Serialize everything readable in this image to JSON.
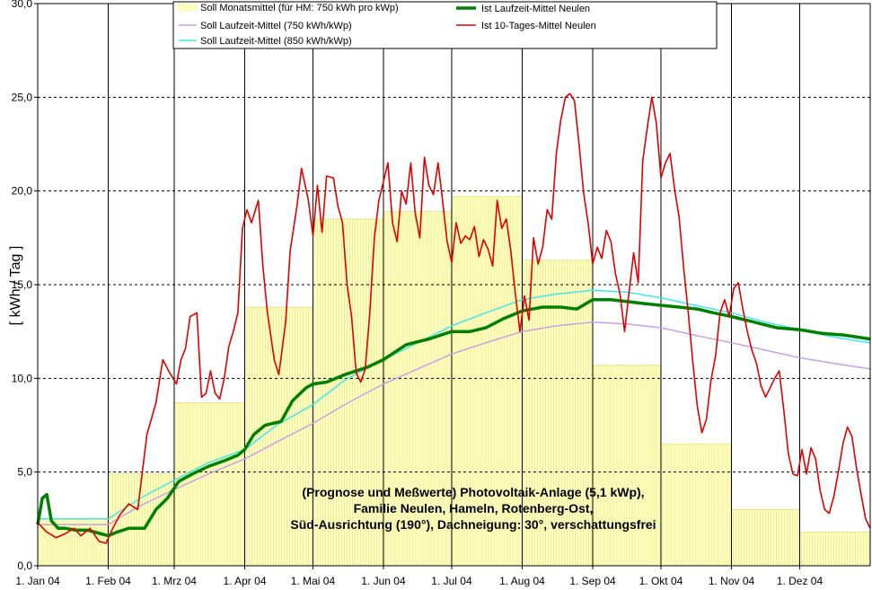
{
  "chart_data": {
    "type": "line",
    "ylabel": "[ kWh / Tag ]",
    "ylim": [
      0,
      30
    ],
    "y_ticks": [
      "0,0",
      "5,0",
      "10,0",
      "15,0",
      "20,0",
      "25,0",
      "30,0"
    ],
    "x_ticks": [
      "1. Jan 04",
      "1. Feb 04",
      "1. Mrz 04",
      "1. Apr 04",
      "1. Mai 04",
      "1. Jun 04",
      "1. Jul 04",
      "1. Aug 04",
      "1. Sep 04",
      "1. Okt 04",
      "1. Nov 04",
      "1. Dez 04"
    ],
    "x_range_days": [
      0,
      366
    ],
    "grid": "dashed-horizontal, solid-vertical at month starts",
    "legend_position": "top-center",
    "annotation_lines": [
      "(Prognose und Meßwerte)  Photovoltaik-Anlage (5,1 kWp),",
      "Familie Neulen, Hameln, Rotenberg-Ost,",
      "Süd-Ausrichtung (190°), Dachneigung: 30°, verschattungsfrei"
    ],
    "monthly_bars": {
      "name": "Soll Monatsmittel (für HM: 750 kWh pro kWp)",
      "color": "#ffffc0",
      "month_start_days": [
        0,
        31,
        60,
        91,
        121,
        152,
        182,
        213,
        244,
        274,
        305,
        335,
        366
      ],
      "values": [
        2.5,
        4.9,
        8.7,
        13.8,
        18.5,
        18.9,
        19.7,
        16.3,
        10.7,
        6.5,
        3.0,
        1.8
      ]
    },
    "series": [
      {
        "name": "Soll Laufzeit-Mittel (750 kWh/kWp)",
        "color": "#c8a0e8",
        "width": 1.5,
        "points": [
          [
            0,
            2.2
          ],
          [
            31,
            2.2
          ],
          [
            45,
            3.2
          ],
          [
            59,
            4.0
          ],
          [
            75,
            4.9
          ],
          [
            91,
            5.7
          ],
          [
            105,
            6.6
          ],
          [
            121,
            7.6
          ],
          [
            135,
            8.6
          ],
          [
            152,
            9.7
          ],
          [
            167,
            10.5
          ],
          [
            182,
            11.3
          ],
          [
            197,
            11.9
          ],
          [
            213,
            12.5
          ],
          [
            228,
            12.8
          ],
          [
            244,
            13.0
          ],
          [
            259,
            12.9
          ],
          [
            274,
            12.7
          ],
          [
            289,
            12.3
          ],
          [
            305,
            11.9
          ],
          [
            320,
            11.5
          ],
          [
            335,
            11.1
          ],
          [
            350,
            10.8
          ],
          [
            366,
            10.5
          ]
        ]
      },
      {
        "name": "Soll Laufzeit-Mittel (850 kWh/kWp)",
        "color": "#40e8e8",
        "width": 1.5,
        "points": [
          [
            0,
            2.5
          ],
          [
            31,
            2.5
          ],
          [
            45,
            3.6
          ],
          [
            59,
            4.5
          ],
          [
            75,
            5.5
          ],
          [
            91,
            6.2
          ],
          [
            105,
            7.5
          ],
          [
            121,
            8.6
          ],
          [
            135,
            9.9
          ],
          [
            152,
            11.0
          ],
          [
            167,
            11.9
          ],
          [
            182,
            12.8
          ],
          [
            197,
            13.5
          ],
          [
            213,
            14.2
          ],
          [
            228,
            14.5
          ],
          [
            244,
            14.7
          ],
          [
            259,
            14.6
          ],
          [
            274,
            14.3
          ],
          [
            289,
            13.9
          ],
          [
            305,
            13.5
          ],
          [
            320,
            13.0
          ],
          [
            335,
            12.6
          ],
          [
            350,
            12.2
          ],
          [
            366,
            11.9
          ]
        ]
      },
      {
        "name": "Ist Laufzeit-Mittel Neulen",
        "color": "#008000",
        "width": 3.5,
        "points": [
          [
            0,
            2.2
          ],
          [
            2,
            3.6
          ],
          [
            4,
            3.8
          ],
          [
            6,
            2.4
          ],
          [
            9,
            2.0
          ],
          [
            12,
            2.0
          ],
          [
            17,
            1.9
          ],
          [
            22,
            1.9
          ],
          [
            28,
            1.7
          ],
          [
            31,
            1.6
          ],
          [
            35,
            1.8
          ],
          [
            40,
            2.0
          ],
          [
            47,
            2.0
          ],
          [
            52,
            3.0
          ],
          [
            57,
            3.6
          ],
          [
            62,
            4.5
          ],
          [
            68,
            4.9
          ],
          [
            75,
            5.3
          ],
          [
            82,
            5.6
          ],
          [
            88,
            5.9
          ],
          [
            91,
            6.2
          ],
          [
            95,
            7.0
          ],
          [
            100,
            7.5
          ],
          [
            107,
            7.7
          ],
          [
            112,
            8.8
          ],
          [
            118,
            9.5
          ],
          [
            121,
            9.7
          ],
          [
            127,
            9.8
          ],
          [
            135,
            10.2
          ],
          [
            145,
            10.6
          ],
          [
            152,
            11.0
          ],
          [
            162,
            11.8
          ],
          [
            172,
            12.1
          ],
          [
            182,
            12.5
          ],
          [
            190,
            12.5
          ],
          [
            197,
            12.7
          ],
          [
            205,
            13.2
          ],
          [
            213,
            13.6
          ],
          [
            222,
            13.8
          ],
          [
            230,
            13.8
          ],
          [
            237,
            13.7
          ],
          [
            244,
            14.2
          ],
          [
            252,
            14.2
          ],
          [
            259,
            14.1
          ],
          [
            266,
            14.0
          ],
          [
            274,
            13.9
          ],
          [
            282,
            13.8
          ],
          [
            290,
            13.7
          ],
          [
            297,
            13.5
          ],
          [
            305,
            13.3
          ],
          [
            315,
            13.0
          ],
          [
            325,
            12.7
          ],
          [
            335,
            12.6
          ],
          [
            345,
            12.4
          ],
          [
            355,
            12.3
          ],
          [
            366,
            12.1
          ]
        ]
      },
      {
        "name": "Ist 10-Tages-Mittel Neulen",
        "color": "#e00000",
        "width": 1.6,
        "points": [
          [
            0,
            2.3
          ],
          [
            4,
            1.8
          ],
          [
            8,
            1.5
          ],
          [
            12,
            1.7
          ],
          [
            16,
            2.0
          ],
          [
            19,
            1.6
          ],
          [
            23,
            2.0
          ],
          [
            27,
            1.3
          ],
          [
            30,
            1.2
          ],
          [
            33,
            2.0
          ],
          [
            36,
            2.7
          ],
          [
            40,
            3.3
          ],
          [
            44,
            3.0
          ],
          [
            46,
            5.0
          ],
          [
            48,
            7.0
          ],
          [
            52,
            8.7
          ],
          [
            55,
            11.0
          ],
          [
            58,
            10.3
          ],
          [
            61,
            9.7
          ],
          [
            63,
            11.0
          ],
          [
            65,
            11.6
          ],
          [
            67,
            13.3
          ],
          [
            70,
            13.5
          ],
          [
            72,
            9.0
          ],
          [
            74,
            9.2
          ],
          [
            76,
            10.4
          ],
          [
            78,
            9.2
          ],
          [
            80,
            8.9
          ],
          [
            82,
            10.0
          ],
          [
            84,
            11.7
          ],
          [
            86,
            12.5
          ],
          [
            88,
            13.5
          ],
          [
            90,
            18.0
          ],
          [
            92,
            19.0
          ],
          [
            94,
            18.3
          ],
          [
            96,
            19.1
          ],
          [
            97,
            19.5
          ],
          [
            99,
            16.0
          ],
          [
            101,
            13.5
          ],
          [
            104,
            11.0
          ],
          [
            106,
            10.2
          ],
          [
            109,
            13.0
          ],
          [
            111,
            16.8
          ],
          [
            114,
            19.2
          ],
          [
            116,
            21.2
          ],
          [
            119,
            19.5
          ],
          [
            121,
            17.6
          ],
          [
            123,
            20.3
          ],
          [
            125,
            17.8
          ],
          [
            127,
            20.8
          ],
          [
            130,
            20.7
          ],
          [
            132,
            19.2
          ],
          [
            134,
            18.3
          ],
          [
            136,
            15.0
          ],
          [
            138,
            13.3
          ],
          [
            140,
            10.3
          ],
          [
            142,
            9.8
          ],
          [
            144,
            10.5
          ],
          [
            146,
            13.5
          ],
          [
            148,
            17.5
          ],
          [
            150,
            19.5
          ],
          [
            152,
            20.5
          ],
          [
            154,
            21.5
          ],
          [
            156,
            18.3
          ],
          [
            158,
            17.3
          ],
          [
            160,
            20.0
          ],
          [
            162,
            19.3
          ],
          [
            164,
            21.5
          ],
          [
            166,
            18.8
          ],
          [
            168,
            17.5
          ],
          [
            170,
            21.8
          ],
          [
            172,
            20.3
          ],
          [
            174,
            19.8
          ],
          [
            176,
            21.5
          ],
          [
            178,
            19.5
          ],
          [
            180,
            17.3
          ],
          [
            182,
            16.2
          ],
          [
            184,
            18.3
          ],
          [
            186,
            17.2
          ],
          [
            188,
            17.6
          ],
          [
            190,
            17.4
          ],
          [
            192,
            18.1
          ],
          [
            194,
            16.5
          ],
          [
            196,
            17.4
          ],
          [
            198,
            16.9
          ],
          [
            200,
            16.0
          ],
          [
            202,
            19.5
          ],
          [
            204,
            18.0
          ],
          [
            206,
            18.5
          ],
          [
            208,
            16.8
          ],
          [
            210,
            14.5
          ],
          [
            212,
            12.5
          ],
          [
            214,
            14.4
          ],
          [
            216,
            13.1
          ],
          [
            218,
            17.5
          ],
          [
            220,
            16.1
          ],
          [
            222,
            17.0
          ],
          [
            224,
            19.0
          ],
          [
            226,
            18.5
          ],
          [
            228,
            22.0
          ],
          [
            230,
            23.8
          ],
          [
            232,
            25.0
          ],
          [
            234,
            25.2
          ],
          [
            236,
            24.8
          ],
          [
            238,
            22.5
          ],
          [
            240,
            19.9
          ],
          [
            242,
            18.3
          ],
          [
            244,
            16.1
          ],
          [
            246,
            17.0
          ],
          [
            248,
            16.4
          ],
          [
            250,
            17.9
          ],
          [
            252,
            17.3
          ],
          [
            254,
            15.6
          ],
          [
            256,
            14.5
          ],
          [
            258,
            12.5
          ],
          [
            260,
            14.6
          ],
          [
            262,
            16.7
          ],
          [
            264,
            15.1
          ],
          [
            266,
            21.6
          ],
          [
            268,
            23.4
          ],
          [
            270,
            25.0
          ],
          [
            272,
            23.6
          ],
          [
            274,
            20.7
          ],
          [
            276,
            21.5
          ],
          [
            278,
            22.0
          ],
          [
            280,
            20.1
          ],
          [
            282,
            18.6
          ],
          [
            284,
            15.9
          ],
          [
            286,
            13.5
          ],
          [
            288,
            10.9
          ],
          [
            290,
            8.5
          ],
          [
            292,
            7.1
          ],
          [
            294,
            7.8
          ],
          [
            296,
            9.9
          ],
          [
            298,
            11.2
          ],
          [
            300,
            13.5
          ],
          [
            302,
            14.2
          ],
          [
            304,
            13.3
          ],
          [
            306,
            14.8
          ],
          [
            308,
            15.1
          ],
          [
            310,
            13.7
          ],
          [
            312,
            12.5
          ],
          [
            314,
            11.5
          ],
          [
            316,
            10.8
          ],
          [
            318,
            9.6
          ],
          [
            320,
            9.0
          ],
          [
            322,
            9.5
          ],
          [
            324,
            10.0
          ],
          [
            326,
            10.4
          ],
          [
            328,
            8.3
          ],
          [
            330,
            6.0
          ],
          [
            332,
            4.9
          ],
          [
            334,
            4.8
          ],
          [
            336,
            6.2
          ],
          [
            338,
            4.9
          ],
          [
            340,
            6.3
          ],
          [
            342,
            5.7
          ],
          [
            344,
            4.0
          ],
          [
            346,
            3.0
          ],
          [
            348,
            2.8
          ],
          [
            350,
            3.7
          ],
          [
            352,
            5.0
          ],
          [
            354,
            6.5
          ],
          [
            356,
            7.4
          ],
          [
            358,
            6.9
          ],
          [
            360,
            5.2
          ],
          [
            362,
            3.8
          ],
          [
            364,
            2.5
          ],
          [
            366,
            2.0
          ]
        ]
      }
    ]
  }
}
